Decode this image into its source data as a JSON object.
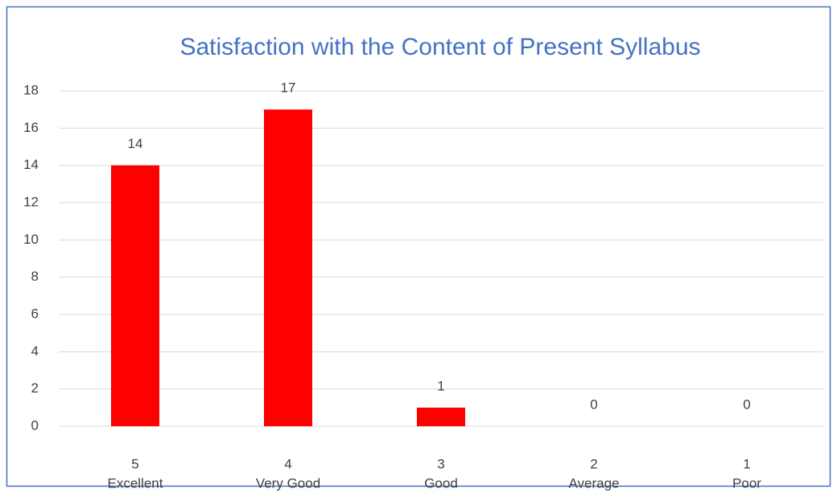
{
  "chart_data": {
    "type": "bar",
    "title": "Satisfaction with the Content of Present Syllabus",
    "categories": [
      [
        "5",
        "Excellent"
      ],
      [
        "4",
        "Very Good"
      ],
      [
        "3",
        "Good"
      ],
      [
        "2",
        "Average"
      ],
      [
        "1",
        "Poor"
      ]
    ],
    "values": [
      14,
      17,
      1,
      0,
      0
    ],
    "color": "#ff0000",
    "ylim": [
      0,
      18
    ],
    "yticks": [
      0,
      2,
      4,
      6,
      8,
      10,
      12,
      14,
      16,
      18
    ],
    "grid": true
  }
}
